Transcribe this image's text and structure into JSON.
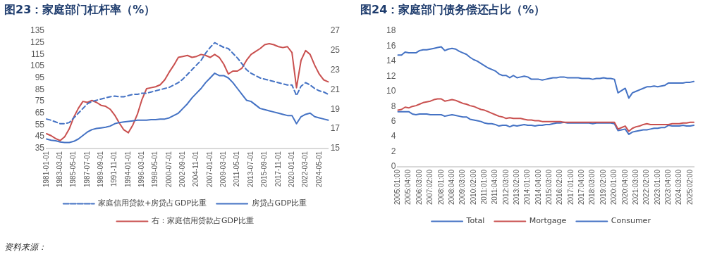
{
  "chart_data": [
    {
      "type": "line",
      "title": "图23：家庭部门杠杆率（%）",
      "categories": [
        "1981-01-01",
        null,
        null,
        "1983-03-01",
        null,
        null,
        "1985-05-01",
        null,
        null,
        "1987-07-01",
        null,
        null,
        "1989-09-01",
        null,
        null,
        "1991-11-01",
        null,
        null,
        "1994-01-01",
        null,
        null,
        "1996-03-01",
        null,
        null,
        "1998-05-01",
        null,
        null,
        "2000-07-01",
        null,
        null,
        "2002-09-01",
        null,
        null,
        "2004-11-01",
        null,
        null,
        "2007-01-01",
        null,
        null,
        "2009-03-01",
        null,
        null,
        "2011-05-01",
        null,
        null,
        "2013-07-01",
        null,
        null,
        "2015-09-01",
        null,
        null,
        "2017-11-01",
        null,
        null,
        "2020-01-01",
        null,
        null,
        "2022-03-01",
        null,
        null,
        "2024-05-01",
        null,
        null
      ],
      "series": [
        {
          "name": "家庭信用贷款+房贷占GDP比重",
          "color": "#4472c4",
          "line_style": "dashed",
          "values": [
            60,
            59,
            57.5,
            56,
            56,
            57,
            61,
            65,
            69,
            73,
            75,
            76,
            77,
            78,
            79,
            79.5,
            79,
            79,
            80,
            81,
            81,
            82,
            82,
            83,
            84,
            85,
            86,
            87,
            89,
            91,
            94,
            98,
            102,
            106,
            110,
            116,
            121,
            125,
            123,
            121,
            120,
            116,
            112,
            107,
            102,
            99,
            97,
            95,
            94,
            93,
            92,
            91,
            90,
            89,
            89,
            80,
            88,
            91,
            89,
            86,
            84,
            83,
            81
          ]
        },
        {
          "name": "房贷占GDP比重",
          "color": "#4472c4",
          "values": [
            43,
            42,
            41.5,
            40.5,
            40,
            40,
            41,
            43,
            46,
            49,
            51,
            52,
            52.5,
            53,
            54,
            56,
            57,
            57.5,
            58,
            58.5,
            59,
            59,
            59,
            59.5,
            59.5,
            60,
            60,
            61,
            63,
            65,
            69,
            73,
            78,
            82,
            86,
            91,
            95,
            99,
            97,
            97,
            95,
            91,
            86,
            81,
            76,
            75,
            72,
            69,
            68,
            67,
            66,
            65,
            64,
            63,
            63,
            56,
            62,
            64,
            65,
            62,
            61,
            60,
            59
          ]
        },
        {
          "name": "右：家庭信用贷款占GDP比重",
          "color": "#c9504f",
          "axis": "y2",
          "values": [
            16.5,
            16.3,
            16,
            15.8,
            16.2,
            17,
            18.2,
            19.1,
            19.8,
            19.7,
            19.9,
            19.7,
            19.4,
            19.3,
            19,
            18.4,
            17.6,
            16.9,
            16.6,
            17.4,
            18.5,
            20,
            21.1,
            21.2,
            21.3,
            21.5,
            22,
            22.8,
            23.5,
            24.3,
            24.4,
            24.5,
            24.3,
            24.4,
            24.6,
            24.5,
            24.3,
            24.6,
            24.3,
            23.6,
            22.6,
            22.9,
            22.9,
            23.2,
            24,
            24.6,
            24.9,
            25.2,
            25.6,
            25.7,
            25.6,
            25.4,
            25.3,
            25.4,
            24.8,
            21.2,
            24,
            25,
            24.6,
            23.5,
            22.6,
            22,
            21.8
          ]
        }
      ],
      "ylim": [
        35,
        135
      ],
      "yticks": [
        35,
        45,
        55,
        65,
        75,
        85,
        95,
        105,
        115,
        125,
        135
      ],
      "y2lim": [
        15,
        27
      ],
      "y2ticks": [
        15,
        17,
        19,
        21,
        23,
        25,
        27
      ],
      "grid": false,
      "legend": "bottom",
      "marker": "none",
      "line_style": "solid",
      "annotations": [
        "资料来源："
      ]
    },
    {
      "type": "line",
      "title": "图24：家庭部门债务偿还占比（%）",
      "categories": [
        "2005:01:00",
        null,
        null,
        "2005:04:00",
        null,
        null,
        "2006:03:00",
        null,
        null,
        "2007:02:00",
        null,
        null,
        "2008:01:00",
        null,
        null,
        "2008:04:00",
        null,
        null,
        "2009:03:00",
        null,
        null,
        "2010:02:00",
        null,
        null,
        "2011:01:00",
        null,
        null,
        "2011:04:00",
        null,
        null,
        "2012:03:00",
        null,
        null,
        "2013:02:00",
        null,
        null,
        "2014:01:00",
        null,
        null,
        "2014:04:00",
        null,
        null,
        "2015:03:00",
        null,
        null,
        "2016:02:00",
        null,
        null,
        "2017:01:00",
        null,
        null,
        "2017:04:00",
        null,
        null,
        "2018:03:00",
        null,
        null,
        "2019:02:00",
        null,
        null,
        "2020:01:00",
        null,
        null,
        "2020:04:00",
        null,
        null,
        "2021:03:00",
        null,
        null,
        "2022:02:00",
        null,
        null,
        "2023:01:00",
        null,
        null,
        "2023:04:00",
        null,
        null,
        "2024:03:00",
        null,
        null,
        "2025:02:00",
        null
      ],
      "series": [
        {
          "name": "Total",
          "color": "#4472c4",
          "values": [
            14.8,
            14.8,
            15.2,
            15.1,
            15.1,
            15.1,
            15.4,
            15.5,
            15.5,
            15.6,
            15.7,
            15.8,
            15.9,
            15.4,
            15.6,
            15.7,
            15.6,
            15.3,
            15.1,
            14.9,
            14.5,
            14.2,
            14,
            13.7,
            13.4,
            13.1,
            12.9,
            12.7,
            12.3,
            12.1,
            12.1,
            11.8,
            12.1,
            11.8,
            11.9,
            12,
            11.9,
            11.6,
            11.6,
            11.6,
            11.5,
            11.6,
            11.7,
            11.8,
            11.8,
            11.9,
            11.9,
            11.8,
            11.8,
            11.8,
            11.8,
            11.7,
            11.7,
            11.7,
            11.6,
            11.7,
            11.7,
            11.8,
            11.7,
            11.7,
            11.6,
            9.8,
            10.1,
            10.4,
            9.1,
            9.8,
            10,
            10.2,
            10.4,
            10.6,
            10.6,
            10.7,
            10.6,
            10.7,
            10.8,
            11.1,
            11.1,
            11.1,
            11.1,
            11.1,
            11.2,
            11.2,
            11.3
          ]
        },
        {
          "name": "Mortgage",
          "color": "#c9504f",
          "values": [
            7.5,
            7.6,
            7.9,
            7.8,
            8,
            8.1,
            8.3,
            8.5,
            8.6,
            8.7,
            8.9,
            9,
            9,
            8.7,
            8.8,
            8.9,
            8.8,
            8.6,
            8.4,
            8.3,
            8.1,
            8,
            7.8,
            7.6,
            7.5,
            7.3,
            7.1,
            6.9,
            6.7,
            6.6,
            6.4,
            6.5,
            6.4,
            6.4,
            6.4,
            6.3,
            6.2,
            6.2,
            6.1,
            6.1,
            6,
            6,
            6,
            6,
            6,
            6,
            5.9,
            5.9,
            5.9,
            5.9,
            5.9,
            5.9,
            5.9,
            5.9,
            5.9,
            5.9,
            5.9,
            5.9,
            5.9,
            5.9,
            5.9,
            5,
            5.2,
            5.4,
            4.7,
            5.1,
            5.3,
            5.4,
            5.6,
            5.7,
            5.6,
            5.6,
            5.6,
            5.6,
            5.6,
            5.6,
            5.7,
            5.7,
            5.7,
            5.8,
            5.8,
            5.9,
            5.9
          ]
        },
        {
          "name": "Consumer",
          "color": "#4472c4",
          "values": [
            7.3,
            7.3,
            7.3,
            7.3,
            7,
            6.9,
            7,
            7,
            7,
            6.9,
            6.9,
            6.9,
            6.9,
            6.7,
            6.8,
            6.9,
            6.8,
            6.7,
            6.6,
            6.6,
            6.3,
            6.2,
            6.1,
            6,
            5.8,
            5.7,
            5.7,
            5.6,
            5.4,
            5.5,
            5.5,
            5.3,
            5.5,
            5.4,
            5.5,
            5.6,
            5.5,
            5.5,
            5.4,
            5.5,
            5.5,
            5.6,
            5.6,
            5.7,
            5.8,
            5.8,
            5.9,
            5.8,
            5.8,
            5.8,
            5.8,
            5.8,
            5.8,
            5.8,
            5.7,
            5.8,
            5.8,
            5.8,
            5.8,
            5.8,
            5.7,
            4.8,
            4.9,
            5,
            4.3,
            4.6,
            4.7,
            4.8,
            4.9,
            4.9,
            5,
            5.1,
            5.1,
            5.2,
            5.2,
            5.5,
            5.4,
            5.4,
            5.4,
            5.5,
            5.4,
            5.4,
            5.5
          ]
        }
      ],
      "ylim": [
        0,
        18
      ],
      "yticks": [
        0,
        2,
        4,
        6,
        8,
        10,
        12,
        14,
        16,
        18
      ],
      "grid": false,
      "legend": "bottom",
      "marker": "none",
      "line_style": "solid"
    }
  ]
}
